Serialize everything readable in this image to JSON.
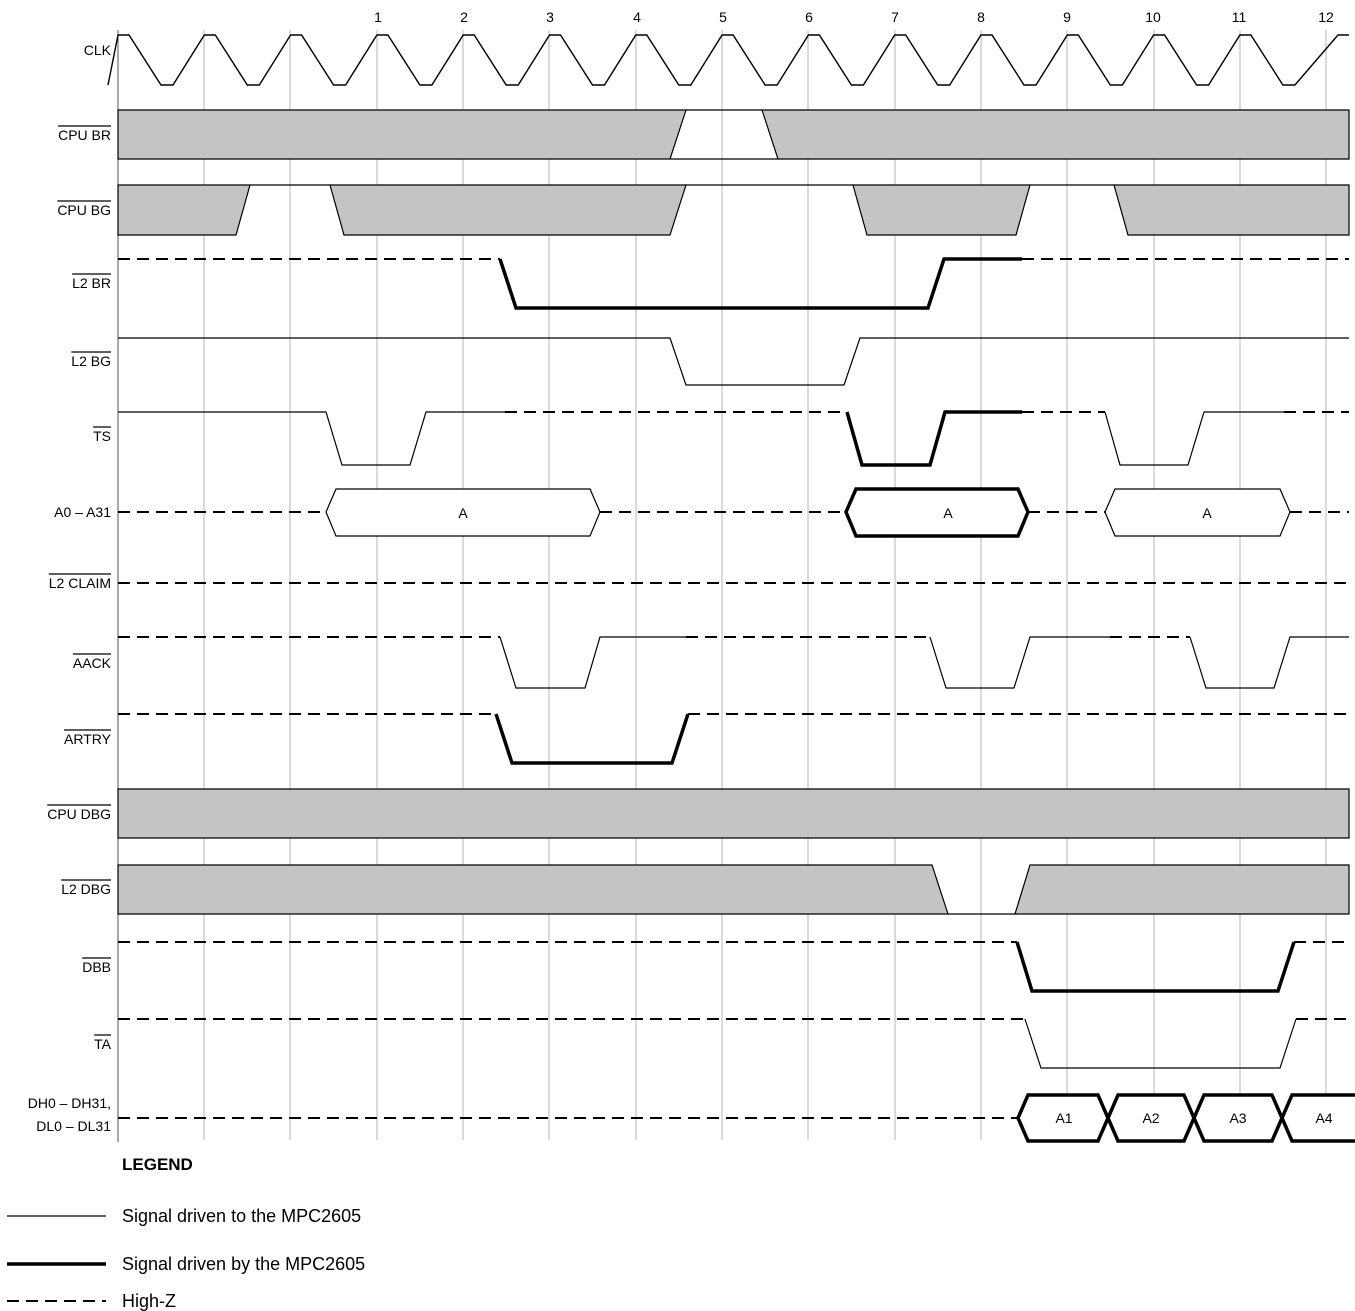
{
  "cycle_labels": [
    "1",
    "2",
    "3",
    "4",
    "5",
    "6",
    "7",
    "8",
    "9",
    "10",
    "11",
    "12"
  ],
  "colors": {
    "shade": "#c4c4c4",
    "grid": "#b4b4b4",
    "line": "#000000"
  },
  "signals": [
    {
      "id": "clk",
      "label": "CLK",
      "overbar": false
    },
    {
      "id": "cpu-br",
      "label": "CPU BR",
      "overbar": true
    },
    {
      "id": "cpu-bg",
      "label": "CPU BG",
      "overbar": true
    },
    {
      "id": "l2-br",
      "label": "L2 BR",
      "overbar": true
    },
    {
      "id": "l2-bg",
      "label": "L2 BG",
      "overbar": true
    },
    {
      "id": "ts",
      "label": "TS",
      "overbar": true
    },
    {
      "id": "a0-a31",
      "label": "A0 – A31",
      "overbar": false
    },
    {
      "id": "l2-claim",
      "label": "L2 CLAIM",
      "overbar": true
    },
    {
      "id": "aack",
      "label": "AACK",
      "overbar": true
    },
    {
      "id": "artry",
      "label": "ARTRY",
      "overbar": true
    },
    {
      "id": "cpu-dbg",
      "label": "CPU DBG",
      "overbar": true
    },
    {
      "id": "l2-dbg",
      "label": "L2 DBG",
      "overbar": true
    },
    {
      "id": "dbb",
      "label": "DBB",
      "overbar": true
    },
    {
      "id": "ta",
      "label": "TA",
      "overbar": true
    },
    {
      "id": "dh-dl",
      "label": "DH0 – DH31,",
      "label2": "DL0 – DL31",
      "overbar": false
    }
  ],
  "bus_values": {
    "addr1": "A",
    "addr2": "A",
    "addr3": "A",
    "d1": "A1",
    "d2": "A2",
    "d3": "A3",
    "d4": "A4"
  },
  "legend": {
    "title": "LEGEND",
    "items": [
      {
        "style": "thin",
        "text": "Signal driven to the MPC2605"
      },
      {
        "style": "thick",
        "text": "Signal driven by the MPC2605"
      },
      {
        "style": "dashed",
        "text": "High-Z"
      }
    ]
  }
}
